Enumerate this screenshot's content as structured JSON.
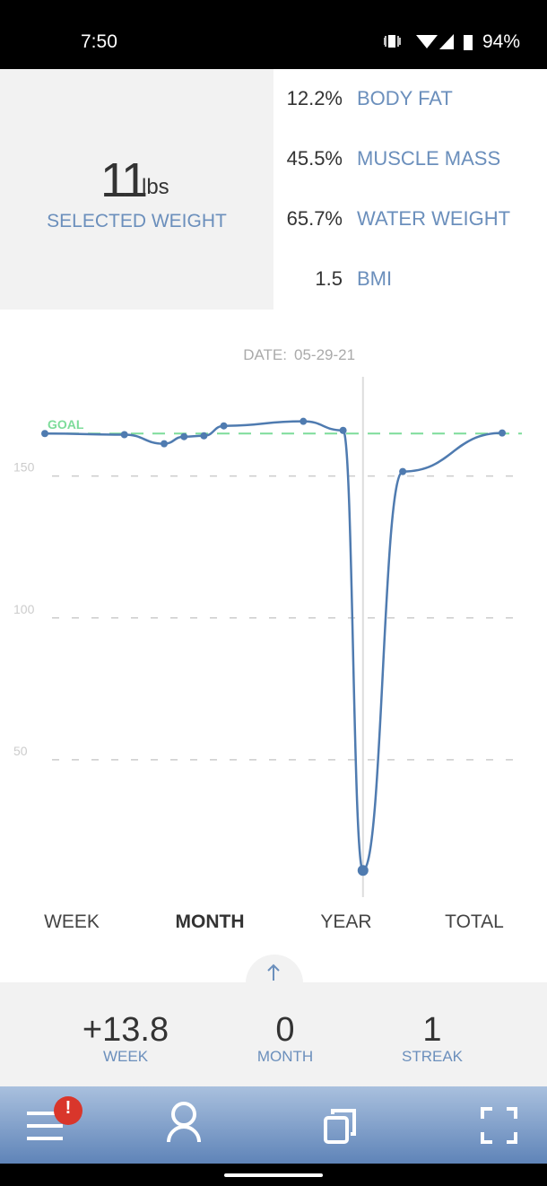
{
  "status_bar": {
    "time": "7:50",
    "battery": "94%"
  },
  "selected": {
    "value": "11",
    "unit": "lbs",
    "label": "SELECTED WEIGHT"
  },
  "stats": [
    {
      "value": "12.2%",
      "label": "BODY FAT"
    },
    {
      "value": "45.5%",
      "label": "MUSCLE MASS"
    },
    {
      "value": "65.7%",
      "label": "WATER WEIGHT"
    },
    {
      "value": "1.5",
      "label": "BMI"
    }
  ],
  "chart_data": {
    "type": "line",
    "date_label": "DATE:",
    "date": "05-29-21",
    "x": [
      0,
      4,
      6,
      7,
      8,
      9,
      13,
      15,
      16,
      18,
      23
    ],
    "series": [
      {
        "name": "Weight",
        "color": "#4f7bb0",
        "values": [
          165,
          164.6,
          161.4,
          163.9,
          164.2,
          167.7,
          169.3,
          166.1,
          11,
          151.6,
          165.2
        ]
      }
    ],
    "xlim": [
      0,
      23
    ],
    "ylim": [
      0,
      185
    ],
    "yticks": [
      150,
      100,
      50
    ],
    "grid": true,
    "goal": {
      "label": "GOAL",
      "value": 165,
      "color": "#7ddc9a"
    },
    "selected_x": 16
  },
  "tabs": [
    "WEEK",
    "MONTH",
    "YEAR",
    "TOTAL"
  ],
  "summary": [
    {
      "value": "+13.8",
      "label": "WEEK"
    },
    {
      "value": "0",
      "label": "MONTH"
    },
    {
      "value": "1",
      "label": "STREAK"
    }
  ],
  "nav": {
    "badge": "!"
  }
}
